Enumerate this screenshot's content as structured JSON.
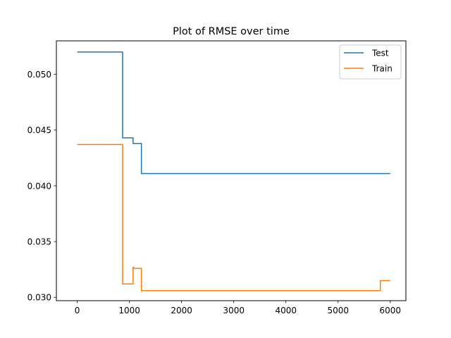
{
  "chart_data": {
    "type": "line",
    "title": "Plot of RMSE over time",
    "xlabel": "",
    "ylabel": "",
    "xlim": [
      -400,
      6300
    ],
    "ylim": [
      0.0297,
      0.053
    ],
    "xticks": [
      0,
      1000,
      2000,
      3000,
      4000,
      5000,
      6000
    ],
    "xtick_labels": [
      "0",
      "1000",
      "2000",
      "3000",
      "4000",
      "5000",
      "6000"
    ],
    "yticks": [
      0.03,
      0.035,
      0.04,
      0.045,
      0.05
    ],
    "ytick_labels": [
      "0.030",
      "0.035",
      "0.040",
      "0.045",
      "0.050"
    ],
    "grid": false,
    "legend_position": "top-right",
    "series": [
      {
        "name": "Test",
        "color": "#1f77b4",
        "x": [
          0,
          870,
          870,
          1070,
          1070,
          1230,
          1230,
          6000
        ],
        "y": [
          0.052,
          0.052,
          0.0443,
          0.0443,
          0.0438,
          0.0438,
          0.0411,
          0.0411
        ]
      },
      {
        "name": "Train",
        "color": "#ff7f0e",
        "x": [
          0,
          870,
          870,
          1070,
          1070,
          1080,
          1080,
          1230,
          1230,
          5810,
          5810,
          6000
        ],
        "y": [
          0.0437,
          0.0437,
          0.0312,
          0.0312,
          0.0327,
          0.0327,
          0.0326,
          0.0326,
          0.0306,
          0.0306,
          0.0315,
          0.0315
        ]
      }
    ]
  }
}
